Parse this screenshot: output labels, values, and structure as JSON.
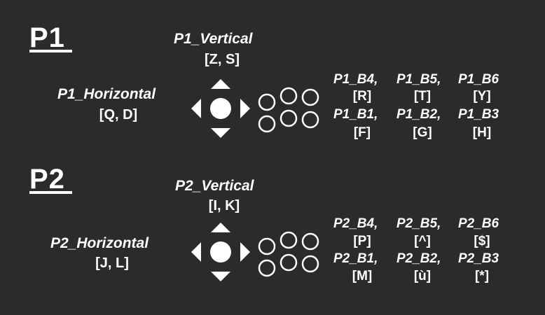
{
  "colors": {
    "background": "#2b2b2b",
    "foreground": "#ffffff"
  },
  "players": [
    {
      "label": "P1",
      "vertical": {
        "name": "P1_Vertical",
        "keys": "[Z, S]"
      },
      "horizontal": {
        "name": "P1_Horizontal",
        "keys": "[Q, D]"
      },
      "buttons_top": {
        "names": [
          "P1_B4,",
          "P1_B5,",
          "P1_B6"
        ],
        "keys": [
          "[R]",
          "[T]",
          "[Y]"
        ]
      },
      "buttons_bottom": {
        "names": [
          "P1_B1,",
          "P1_B2,",
          "P1_B3"
        ],
        "keys": [
          "[F]",
          "[G]",
          "[H]"
        ]
      }
    },
    {
      "label": "P2",
      "vertical": {
        "name": "P2_Vertical",
        "keys": "[I, K]"
      },
      "horizontal": {
        "name": "P2_Horizontal",
        "keys": "[J, L]"
      },
      "buttons_top": {
        "names": [
          "P2_B4,",
          "P2_B5,",
          "P2_B6"
        ],
        "keys": [
          "[P]",
          "[^]",
          "[$]"
        ]
      },
      "buttons_bottom": {
        "names": [
          "P2_B1,",
          "P2_B2,",
          "P2_B3"
        ],
        "keys": [
          "[M]",
          "[ù]",
          "[*]"
        ]
      }
    }
  ],
  "icons": [
    "dpad-icon",
    "button-layout-icon"
  ]
}
